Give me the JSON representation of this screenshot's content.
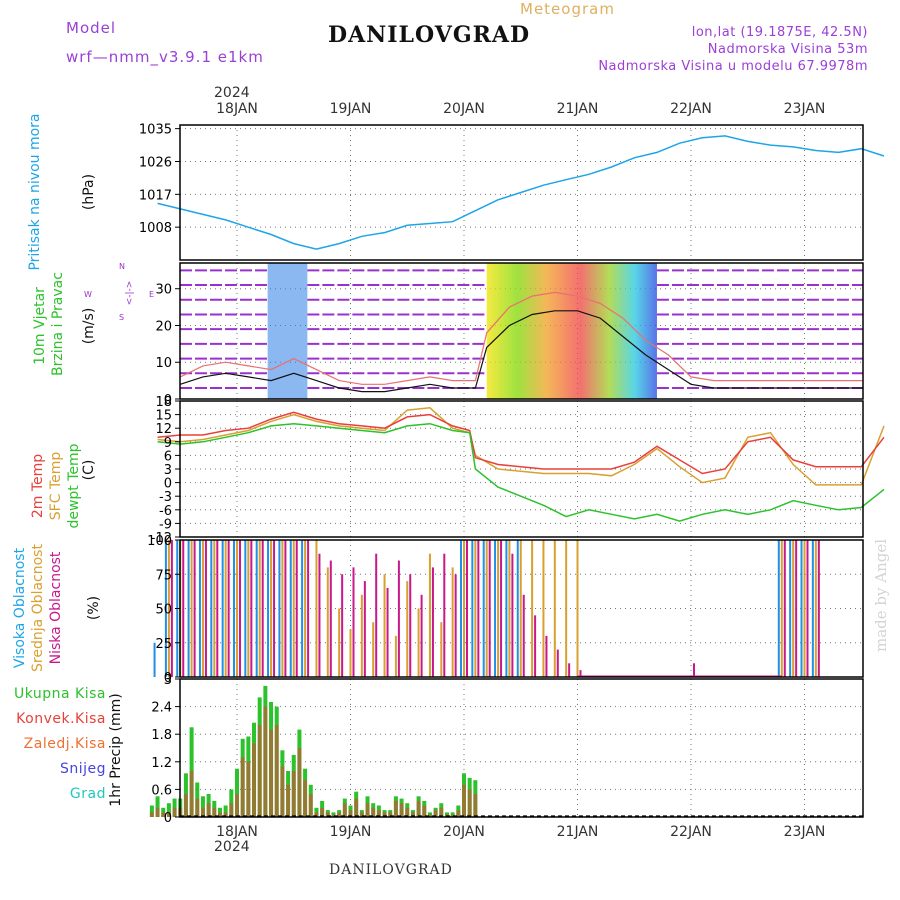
{
  "header": {
    "model_label": "Model",
    "model_name": "wrf—nmm_v3.9.1  e1km",
    "title": "DANILOVGRAD",
    "subtitle": "Meteogram",
    "coords": "lon,lat (19.1875E, 42.5N)",
    "elevation": "Nadmorska Visina 53m",
    "model_elevation": "Nadmorska Visina u modelu 67.9978m"
  },
  "footer": {
    "station": "DANILOVGRAD",
    "watermark": "made by Angel"
  },
  "colors": {
    "pressure": "#1ea5e8",
    "temp2m": "#e8403a",
    "sfc_temp": "#d9a030",
    "dewpoint": "#2cc22c",
    "high_cloud": "#1e90e8",
    "mid_cloud": "#d9a030",
    "low_cloud": "#c8188c",
    "precip_total": "#2cc22c",
    "precip_conv": "#e8403a",
    "wind_weak": "#9b30d0"
  },
  "time_axis": {
    "top_year": "2024",
    "bottom_year": "2024",
    "days": [
      "18JAN",
      "19JAN",
      "20JAN",
      "21JAN",
      "22JAN",
      "23JAN"
    ]
  },
  "wind_panel": {
    "label_line1": "10m Vjetar",
    "label_line2": "Brzina i Pravac",
    "unit": "(m/s)",
    "compass": {
      "north": "N",
      "south": "S",
      "east": "E",
      "west": "W",
      "glyph": "<-|->"
    }
  },
  "chart_data": [
    {
      "type": "line",
      "name": "pressure",
      "ylabel": "Pritisak na nivou mora",
      "unit": "(hPa)",
      "ylim": [
        999,
        1036
      ],
      "yticks": [
        1008,
        1017,
        1026,
        1035
      ],
      "x_days": [
        -0.7,
        -0.5,
        -0.3,
        -0.1,
        0.1,
        0.3,
        0.5,
        0.7,
        0.9,
        1.1,
        1.3,
        1.5,
        1.7,
        1.9,
        2.1,
        2.3,
        2.5,
        2.7,
        2.9,
        3.1,
        3.3,
        3.5,
        3.7,
        3.9,
        4.1,
        4.3,
        4.5,
        4.7,
        4.9,
        5.1,
        5.3,
        5.5,
        5.7
      ],
      "series": [
        {
          "values": [
            1014.5,
            1013,
            1011.5,
            1010,
            1008,
            1006,
            1003.5,
            1002,
            1003.5,
            1005.5,
            1006.5,
            1008.5,
            1009,
            1009.5,
            1012.5,
            1015.5,
            1017.5,
            1019.5,
            1021,
            1022.5,
            1024.5,
            1027,
            1028.5,
            1031,
            1032.5,
            1033,
            1031.5,
            1030.5,
            1030,
            1029,
            1028.5,
            1029.5,
            1027.5
          ]
        }
      ]
    },
    {
      "type": "line",
      "name": "wind",
      "ylabel": "10m Vjetar Brzina i Pravac",
      "unit": "(m/s)",
      "ylim": [
        0,
        37
      ],
      "yticks": [
        0,
        10,
        20,
        30
      ],
      "x_days": [
        -0.7,
        -0.5,
        -0.3,
        -0.1,
        0.1,
        0.3,
        0.5,
        0.7,
        0.9,
        1.1,
        1.3,
        1.5,
        1.7,
        1.9,
        2.1,
        2.2,
        2.4,
        2.6,
        2.8,
        3.0,
        3.2,
        3.4,
        3.6,
        3.8,
        4.0,
        4.2,
        4.4,
        4.6,
        4.8,
        5.0,
        5.2,
        5.4,
        5.7
      ],
      "series": [
        {
          "name": "speed",
          "values": [
            3,
            4,
            6,
            7,
            6,
            5,
            7,
            5,
            3,
            2,
            2,
            3,
            4,
            3,
            3,
            14,
            20,
            23,
            24,
            24,
            22,
            17,
            12,
            8,
            4,
            3,
            3,
            3,
            3,
            3,
            3,
            3,
            3
          ]
        },
        {
          "name": "gust",
          "values": [
            5,
            6,
            9,
            10,
            9,
            8,
            11,
            8,
            5,
            4,
            4,
            5,
            6,
            5,
            5,
            18,
            25,
            28,
            29,
            28,
            26,
            22,
            16,
            12,
            6,
            5,
            5,
            5,
            5,
            5,
            5,
            5,
            5
          ]
        }
      ]
    },
    {
      "type": "line",
      "name": "temperature",
      "series_labels": [
        "2m Temp",
        "SFC Temp",
        "dewpt Temp"
      ],
      "unit": "(C)",
      "ylim": [
        -12,
        18
      ],
      "yticks": [
        -12,
        -9,
        -6,
        -3,
        0,
        3,
        6,
        9,
        12,
        15,
        18
      ],
      "x_days": [
        -0.7,
        -0.5,
        -0.3,
        -0.1,
        0.1,
        0.3,
        0.5,
        0.7,
        0.9,
        1.1,
        1.3,
        1.5,
        1.7,
        1.9,
        2.05,
        2.1,
        2.3,
        2.5,
        2.7,
        2.9,
        3.1,
        3.3,
        3.5,
        3.7,
        3.9,
        4.1,
        4.3,
        4.5,
        4.7,
        4.9,
        5.1,
        5.3,
        5.5,
        5.7
      ],
      "series": [
        {
          "name": "2m Temp",
          "values": [
            10,
            10.5,
            10.5,
            11.5,
            12,
            14,
            15.5,
            14,
            13,
            12.5,
            12,
            14.5,
            15,
            12.5,
            11.5,
            5.5,
            4,
            3.5,
            3,
            3,
            3,
            3,
            4.5,
            8,
            5,
            2,
            3,
            9,
            10,
            5,
            3.5,
            3.5,
            3.5,
            10
          ]
        },
        {
          "name": "SFC Temp",
          "values": [
            9.5,
            9,
            9.5,
            10.5,
            11.5,
            13.5,
            15,
            13.5,
            12.5,
            12,
            11.5,
            16,
            16.5,
            12,
            11,
            6,
            3,
            2.5,
            2,
            2,
            2,
            1.5,
            4,
            7.5,
            3.5,
            0,
            1,
            10,
            11,
            4,
            -0.5,
            -0.5,
            -0.5,
            12.5
          ]
        },
        {
          "name": "dewpt Temp",
          "values": [
            9,
            8.5,
            9,
            10,
            11,
            12.5,
            13,
            12.5,
            12,
            11.5,
            11,
            12.5,
            13,
            11.5,
            11,
            3,
            -1,
            -3,
            -5,
            -7.5,
            -6,
            -7,
            -8,
            -7,
            -8.5,
            -7,
            -6,
            -7,
            -6,
            -4,
            -5,
            -6,
            -5.5,
            -1.5
          ]
        }
      ]
    },
    {
      "type": "bar",
      "name": "cloud_cover",
      "series_labels": [
        "Visoka Oblacnost",
        "Srednja Oblacnost",
        "Niska Oblacnost"
      ],
      "unit": "(%)",
      "ylim": [
        0,
        100
      ],
      "yticks": [
        0,
        25,
        50,
        75,
        100
      ],
      "x_days": [
        -0.7,
        -0.6,
        -0.5,
        -0.4,
        -0.3,
        -0.2,
        -0.1,
        0.0,
        0.1,
        0.2,
        0.3,
        0.4,
        0.5,
        0.6,
        0.7,
        0.8,
        0.9,
        1.0,
        1.1,
        1.2,
        1.3,
        1.4,
        1.5,
        1.6,
        1.7,
        1.8,
        1.9,
        2.0,
        2.1,
        2.2,
        2.3,
        2.4,
        2.5,
        2.6,
        2.7,
        2.8,
        2.9,
        3.0,
        3.6,
        4.0,
        4.8,
        4.9,
        5.0,
        5.1,
        5.2,
        5.3,
        5.5,
        5.7
      ],
      "series": [
        {
          "name": "Visoka Oblacnost",
          "values": [
            25,
            100,
            100,
            100,
            100,
            100,
            100,
            100,
            100,
            100,
            100,
            100,
            100,
            100,
            0,
            0,
            0,
            0,
            0,
            0,
            0,
            0,
            0,
            0,
            0,
            0,
            0,
            100,
            100,
            100,
            100,
            100,
            100,
            0,
            0,
            0,
            0,
            0,
            0,
            0,
            100,
            100,
            100,
            100,
            0,
            0,
            0,
            0
          ]
        },
        {
          "name": "Srednja Oblacnost",
          "values": [
            0,
            100,
            100,
            100,
            100,
            100,
            100,
            100,
            100,
            100,
            100,
            100,
            100,
            100,
            100,
            80,
            50,
            35,
            60,
            40,
            75,
            30,
            70,
            50,
            90,
            40,
            80,
            100,
            100,
            100,
            100,
            100,
            100,
            100,
            100,
            100,
            100,
            100,
            0,
            0,
            100,
            100,
            100,
            100,
            0,
            0,
            0,
            0
          ]
        },
        {
          "name": "Niska Oblacnost",
          "values": [
            0,
            100,
            100,
            100,
            100,
            100,
            100,
            100,
            100,
            100,
            100,
            100,
            100,
            100,
            90,
            85,
            75,
            80,
            70,
            90,
            65,
            85,
            75,
            60,
            80,
            90,
            75,
            100,
            100,
            100,
            100,
            90,
            60,
            45,
            30,
            20,
            10,
            5,
            0,
            10,
            100,
            100,
            100,
            100,
            0,
            0,
            0,
            0
          ]
        }
      ]
    },
    {
      "type": "bar",
      "name": "precipitation",
      "series_labels": [
        "Ukupna Kisa",
        "Konvek.Kisa",
        "Zaledj.Kisa",
        "Snijeg",
        "Grad"
      ],
      "ylabel": "1hr Precip (mm)",
      "ylim": [
        0,
        3
      ],
      "yticks": [
        0,
        0.6,
        1.2,
        1.8,
        2.4,
        3
      ],
      "x_days": [
        -0.75,
        -0.7,
        -0.65,
        -0.6,
        -0.55,
        -0.5,
        -0.45,
        -0.4,
        -0.35,
        -0.3,
        -0.25,
        -0.2,
        -0.15,
        -0.1,
        -0.05,
        0.0,
        0.05,
        0.1,
        0.15,
        0.2,
        0.25,
        0.3,
        0.35,
        0.4,
        0.45,
        0.5,
        0.55,
        0.6,
        0.65,
        0.7,
        0.75,
        0.8,
        0.85,
        0.9,
        0.95,
        1.0,
        1.05,
        1.1,
        1.15,
        1.2,
        1.25,
        1.3,
        1.35,
        1.4,
        1.45,
        1.5,
        1.55,
        1.6,
        1.65,
        1.7,
        1.75,
        1.8,
        1.85,
        1.9,
        1.95,
        2.0,
        2.05,
        2.1
      ],
      "series": [
        {
          "name": "Ukupna Kisa",
          "values": [
            0.25,
            0.45,
            0.2,
            0.3,
            0.4,
            0.4,
            0.95,
            1.95,
            0.75,
            0.45,
            0.5,
            0.35,
            0.2,
            0.25,
            0.6,
            1.05,
            1.7,
            1.75,
            2.05,
            2.6,
            2.85,
            2.5,
            2.4,
            1.45,
            1.0,
            1.35,
            1.9,
            1.05,
            0.7,
            0.2,
            0.35,
            0.15,
            0.1,
            0.15,
            0.4,
            0.25,
            0.55,
            0.15,
            0.45,
            0.3,
            0.25,
            0.15,
            0.15,
            0.45,
            0.4,
            0.3,
            0.15,
            0.45,
            0.35,
            0.1,
            0.2,
            0.3,
            0.1,
            0.1,
            0.25,
            0.95,
            0.85,
            0.8
          ]
        },
        {
          "name": "Konvek.Kisa",
          "values": [
            0.1,
            0.2,
            0.1,
            0.1,
            0.2,
            0.2,
            0.5,
            1.0,
            0.4,
            0.2,
            0.3,
            0.2,
            0.1,
            0.1,
            0.3,
            0.5,
            1.3,
            1.2,
            1.6,
            2.0,
            2.4,
            1.9,
            2.0,
            1.1,
            0.7,
            1.0,
            1.5,
            0.8,
            0.5,
            0.1,
            0.2,
            0.1,
            0.05,
            0.1,
            0.3,
            0.15,
            0.4,
            0.1,
            0.3,
            0.2,
            0.15,
            0.1,
            0.1,
            0.35,
            0.3,
            0.2,
            0.1,
            0.35,
            0.25,
            0.05,
            0.15,
            0.2,
            0.05,
            0.05,
            0.15,
            0.7,
            0.6,
            0.5
          ]
        }
      ]
    }
  ]
}
